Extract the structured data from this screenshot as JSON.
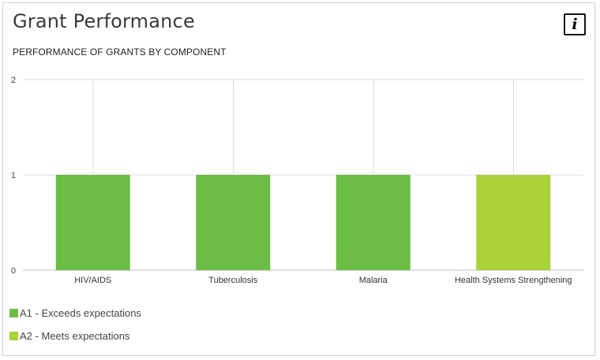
{
  "title": "Grant Performance",
  "info_label": "i",
  "chart_data": {
    "type": "bar",
    "subtitle": "PERFORMANCE OF GRANTS BY COMPONENT",
    "categories": [
      "HIV/AIDS",
      "Tuberculosis",
      "Malaria",
      "Health Systems Strengthening"
    ],
    "values": [
      1,
      1,
      1,
      1
    ],
    "bar_series": [
      "A1",
      "A1",
      "A1",
      "A2"
    ],
    "ylim": [
      0,
      2
    ],
    "yticks": [
      0,
      1,
      2
    ],
    "grid": true,
    "legend_position": "bottom-left",
    "legend": [
      {
        "key": "A1",
        "label": "A1 - Exceeds expectations",
        "color": "#6cbd45"
      },
      {
        "key": "A2",
        "label": "A2 - Meets expectations",
        "color": "#a8d13a"
      }
    ]
  }
}
